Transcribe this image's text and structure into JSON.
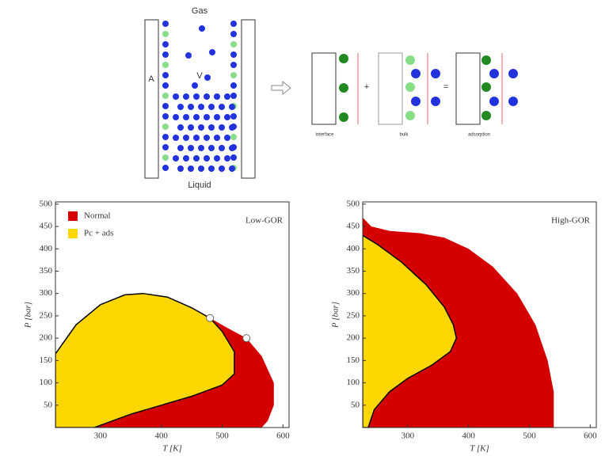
{
  "diagram": {
    "gas": "Gas",
    "liquid": "Liquid",
    "wall": "A",
    "volume": "V",
    "plus": "+",
    "equals": "=",
    "parts": [
      "interface",
      "bulk",
      "adsorption"
    ]
  },
  "chart_data": [
    {
      "type": "area",
      "title": "Low-GOR",
      "xlabel": "T [K]",
      "ylabel": "P [bar]",
      "xlim": [
        226,
        610
      ],
      "ylim": [
        0,
        505
      ],
      "xticks": [
        300,
        400,
        500,
        600
      ],
      "yticks": [
        50,
        100,
        150,
        200,
        250,
        300,
        350,
        400,
        450,
        500
      ],
      "legend": "upper left",
      "series": [
        {
          "name": "Normal",
          "color": "#d40000",
          "x": [
            226,
            226,
            260,
            300,
            340,
            370,
            410,
            450,
            480,
            510,
            540,
            565,
            585,
            585,
            575,
            565
          ],
          "values": [
            0,
            165,
            230,
            275,
            297,
            300,
            292,
            268,
            245,
            222,
            200,
            160,
            100,
            50,
            15,
            0
          ]
        },
        {
          "name": "Pc + ads",
          "color": "#ffd700",
          "x": [
            226,
            226,
            260,
            300,
            340,
            370,
            410,
            450,
            480,
            500,
            520,
            520,
            500,
            450,
            400,
            350,
            310,
            290
          ],
          "values": [
            0,
            165,
            230,
            275,
            297,
            300,
            292,
            268,
            245,
            215,
            170,
            120,
            95,
            70,
            50,
            30,
            10,
            0
          ]
        }
      ],
      "points": {
        "x": [
          480,
          540
        ],
        "values": [
          245,
          200
        ]
      }
    },
    {
      "type": "area",
      "title": "High-GOR",
      "xlabel": "T [K]",
      "ylabel": "P [bar]",
      "xlim": [
        226,
        610
      ],
      "ylim": [
        0,
        505
      ],
      "xticks": [
        300,
        400,
        500,
        600
      ],
      "yticks": [
        50,
        100,
        150,
        200,
        250,
        300,
        350,
        400,
        450,
        500
      ],
      "series": [
        {
          "color": "#d40000",
          "x": [
            226,
            226,
            240,
            270,
            320,
            360,
            400,
            440,
            480,
            510,
            530,
            540,
            540
          ],
          "values": [
            0,
            470,
            450,
            440,
            435,
            425,
            400,
            360,
            300,
            230,
            150,
            80,
            0
          ]
        },
        {
          "color": "#ffd700",
          "x": [
            226,
            226,
            250,
            290,
            330,
            360,
            375,
            380,
            370,
            340,
            300,
            270,
            245,
            235
          ],
          "values": [
            0,
            430,
            410,
            370,
            320,
            270,
            230,
            200,
            170,
            140,
            110,
            80,
            40,
            0
          ]
        }
      ]
    }
  ]
}
